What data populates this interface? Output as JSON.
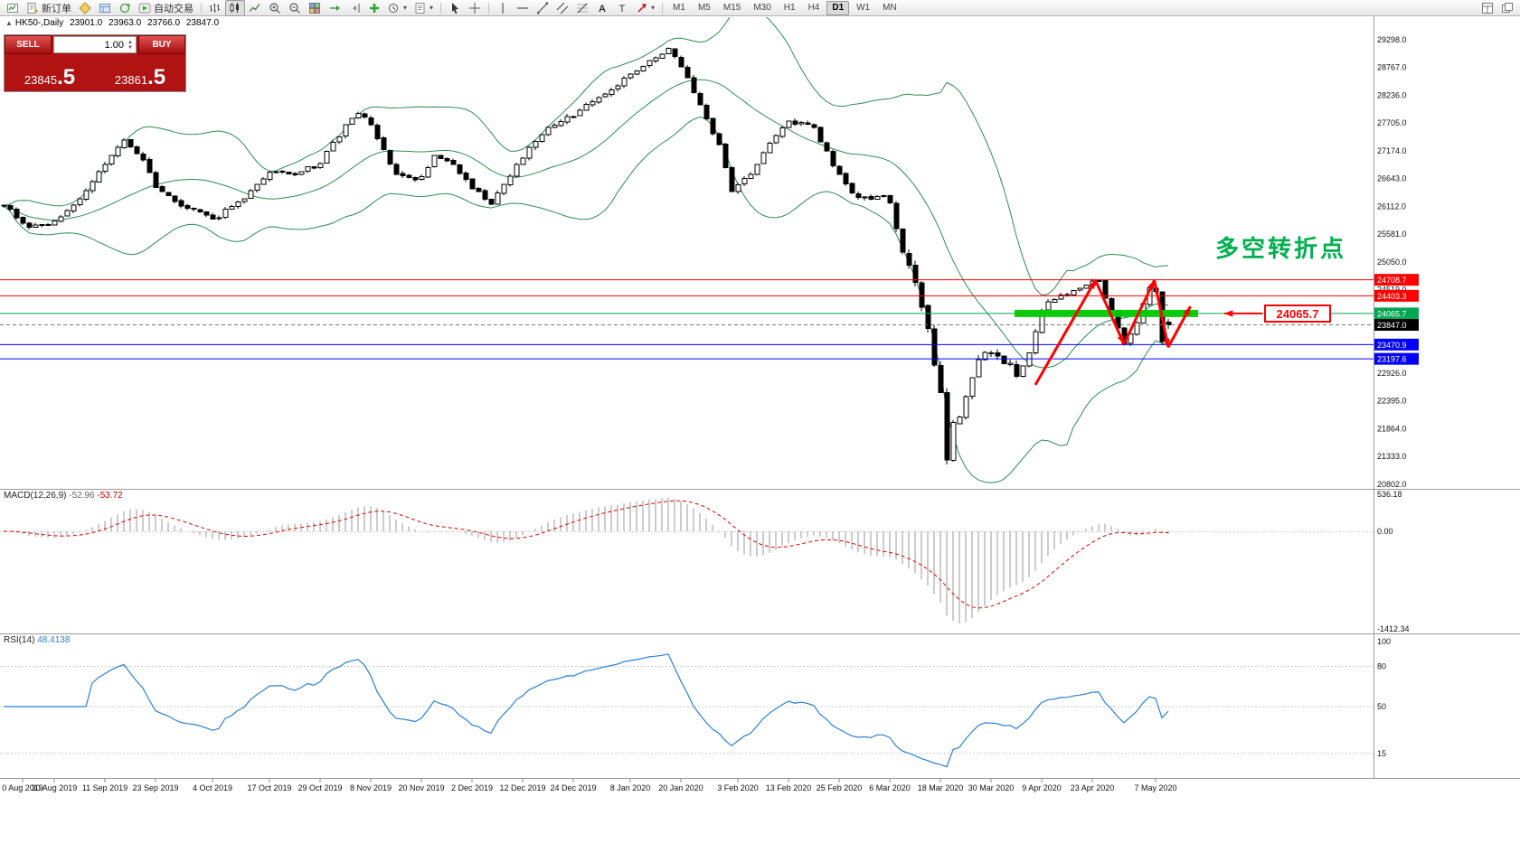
{
  "toolbar": {
    "new_order_label": "新订单",
    "autotrading_label": "自动交易",
    "timeframes": [
      "M1",
      "M5",
      "M15",
      "M30",
      "H1",
      "H4",
      "D1",
      "W1",
      "MN"
    ],
    "active_timeframe": "D1",
    "icon_names": [
      "new-chart-icon",
      "new-order-icon",
      "metaeditor-icon",
      "market-watch-icon",
      "refresh-icon",
      "autotrading-icon",
      "bar-chart-icon",
      "candlestick-icon",
      "line-chart-icon",
      "zoom-in-icon",
      "zoom-out-icon",
      "tile-windows-icon",
      "auto-scroll-icon",
      "chart-shift-icon",
      "indicators-icon",
      "periods-icon",
      "templates-icon",
      "cursor-icon",
      "crosshair-icon",
      "vertical-line-icon",
      "horizontal-line-icon",
      "trendline-icon",
      "channel-icon",
      "fibonacci-icon",
      "text-icon",
      "label-icon",
      "arrow-tool-icon",
      "arrange-windows-icon",
      "window-cascade-icon"
    ]
  },
  "chart_header": {
    "toggle": "▲",
    "symbol": "HK50-,Daily",
    "open": "23901.0",
    "high": "23963.0",
    "low": "23766.0",
    "close": "23847.0"
  },
  "one_click": {
    "sell_label": "SELL",
    "buy_label": "BUY",
    "volume": "1.00",
    "sell_price": "23845",
    "sell_frac": ".5",
    "buy_price": "23861",
    "buy_frac": ".5"
  },
  "price_scale": {
    "values": [
      29298.0,
      28767.0,
      28236.0,
      27705.0,
      27174.0,
      26643.0,
      26112.0,
      25581.0,
      25050.0,
      24519.0,
      22926.0,
      22395.0,
      21864.0,
      21333.0,
      20802.0
    ]
  },
  "hlines": [
    {
      "price": 24708.7,
      "color": "#ff0000"
    },
    {
      "price": 24403.3,
      "color": "#ff0000"
    },
    {
      "price": 24065.7,
      "color": "#00a651"
    },
    {
      "price": 23470.9,
      "color": "#0000ff"
    },
    {
      "price": 23197.6,
      "color": "#0000ff"
    }
  ],
  "bid": {
    "price": 23847.0
  },
  "band": {
    "price": 24065.7,
    "from_i": 160,
    "to_i": 189,
    "color": "#00c800"
  },
  "zigzag": {
    "color": "#ff0000",
    "points": [
      [
        163,
        22700
      ],
      [
        172.5,
        24700
      ],
      [
        177,
        23480
      ],
      [
        181.8,
        24700
      ],
      [
        184,
        23420
      ],
      [
        187.5,
        24200
      ]
    ]
  },
  "annotations": {
    "turning_point_text": "多空转折点",
    "price_callout": "24065.7"
  },
  "macd": {
    "label": "MACD(12,26,9)",
    "value1": "-52.96",
    "value2": "-53.72",
    "scale_max": "536.18",
    "scale_zero": "0.00",
    "scale_min": "-1412.34"
  },
  "rsi": {
    "label": "RSI(14)",
    "value": "48.4138",
    "levels": [
      100,
      80,
      50,
      15
    ]
  },
  "xaxis": {
    "labels": [
      {
        "t": "0 Aug 2019",
        "i": 3
      },
      {
        "t": "30 Aug 2019",
        "i": 8
      },
      {
        "t": "11 Sep 2019",
        "i": 16
      },
      {
        "t": "23 Sep 2019",
        "i": 24
      },
      {
        "t": "4 Oct 2019",
        "i": 33
      },
      {
        "t": "17 Oct 2019",
        "i": 42
      },
      {
        "t": "29 Oct 2019",
        "i": 50
      },
      {
        "t": "8 Nov 2019",
        "i": 58
      },
      {
        "t": "20 Nov 2019",
        "i": 66
      },
      {
        "t": "2 Dec 2019",
        "i": 74
      },
      {
        "t": "12 Dec 2019",
        "i": 82
      },
      {
        "t": "24 Dec 2019",
        "i": 90
      },
      {
        "t": "8 Jan 2020",
        "i": 99
      },
      {
        "t": "20 Jan 2020",
        "i": 107
      },
      {
        "t": "3 Feb 2020",
        "i": 116
      },
      {
        "t": "13 Feb 2020",
        "i": 124
      },
      {
        "t": "25 Feb 2020",
        "i": 132
      },
      {
        "t": "6 Mar 2020",
        "i": 140
      },
      {
        "t": "18 Mar 2020",
        "i": 148
      },
      {
        "t": "30 Mar 2020",
        "i": 156
      },
      {
        "t": "9 Apr 2020",
        "i": 164
      },
      {
        "t": "23 Apr 2020",
        "i": 172
      },
      {
        "t": "7 May 2020",
        "i": 182
      }
    ]
  },
  "chart_data": {
    "type": "candlestick",
    "symbol": "HK50",
    "period": "Daily",
    "count": 185,
    "last_candle": {
      "open": 23901.0,
      "high": 23963.0,
      "low": 23766.0,
      "close": 23847.0
    },
    "price_range_visible": [
      20802.0,
      29298.0
    ],
    "anchors": [
      [
        0,
        26150
      ],
      [
        4,
        25700
      ],
      [
        8,
        25800
      ],
      [
        12,
        26250
      ],
      [
        16,
        26900
      ],
      [
        19,
        27350
      ],
      [
        22,
        27000
      ],
      [
        24,
        26500
      ],
      [
        28,
        26150
      ],
      [
        33,
        25850
      ],
      [
        38,
        26300
      ],
      [
        42,
        26800
      ],
      [
        46,
        26700
      ],
      [
        50,
        26950
      ],
      [
        54,
        27650
      ],
      [
        56,
        27900
      ],
      [
        58,
        27650
      ],
      [
        62,
        26700
      ],
      [
        66,
        26650
      ],
      [
        68,
        27100
      ],
      [
        71,
        26900
      ],
      [
        74,
        26450
      ],
      [
        77,
        26200
      ],
      [
        82,
        27050
      ],
      [
        86,
        27650
      ],
      [
        90,
        27850
      ],
      [
        93,
        28150
      ],
      [
        96,
        28300
      ],
      [
        99,
        28650
      ],
      [
        103,
        28950
      ],
      [
        105,
        29100
      ],
      [
        107,
        28800
      ],
      [
        110,
        28050
      ],
      [
        113,
        27250
      ],
      [
        115,
        26400
      ],
      [
        118,
        26750
      ],
      [
        121,
        27350
      ],
      [
        124,
        27750
      ],
      [
        128,
        27600
      ],
      [
        132,
        26700
      ],
      [
        135,
        26250
      ],
      [
        138,
        26300
      ],
      [
        140,
        26150
      ],
      [
        142,
        25300
      ],
      [
        144,
        24600
      ],
      [
        146,
        23700
      ],
      [
        148,
        22600
      ],
      [
        149,
        21350
      ],
      [
        150,
        21900
      ],
      [
        152,
        22400
      ],
      [
        154,
        23200
      ],
      [
        156,
        23350
      ],
      [
        158,
        23150
      ],
      [
        160,
        22900
      ],
      [
        162,
        23300
      ],
      [
        164,
        24150
      ],
      [
        166,
        24350
      ],
      [
        168,
        24400
      ],
      [
        170,
        24550
      ],
      [
        173,
        24700
      ],
      [
        175,
        24100
      ],
      [
        177,
        23520
      ],
      [
        179,
        23900
      ],
      [
        181,
        24520
      ],
      [
        182,
        24450
      ],
      [
        183,
        23550
      ],
      [
        184,
        23847
      ]
    ],
    "indicators": [
      {
        "name": "Bollinger Bands",
        "period": 20,
        "deviation": 2,
        "color": "#2e8b57"
      },
      {
        "name": "MACD",
        "fast": 12,
        "slow": 26,
        "signal": 9,
        "histogram_color": "#9a9a9a",
        "signal_color": "#e00000"
      },
      {
        "name": "RSI",
        "period": 14,
        "color": "#2a7fd4"
      }
    ]
  }
}
